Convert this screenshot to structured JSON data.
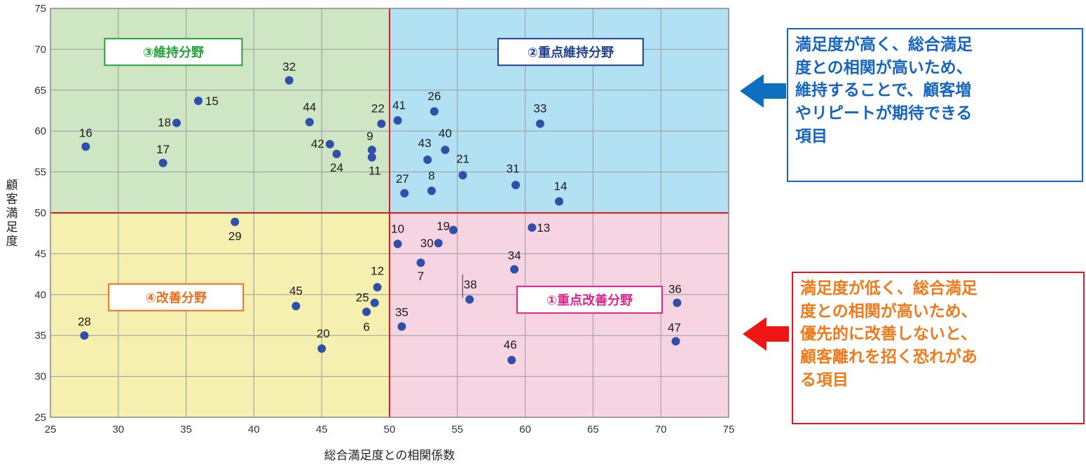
{
  "chart_data": {
    "type": "scatter",
    "xlabel": "総合満足度との相関係数",
    "ylabel": "顧客満足度",
    "xlim": [
      25,
      75
    ],
    "ylim": [
      25,
      75
    ],
    "xticks": [
      "25",
      "30",
      "35",
      "40",
      "45",
      "50",
      "55",
      "60",
      "65",
      "70",
      "75"
    ],
    "yticks": [
      "25",
      "30",
      "35",
      "40",
      "45",
      "50",
      "55",
      "60",
      "65",
      "70",
      "75"
    ],
    "divider": {
      "x": 50,
      "y": 50
    },
    "quadrants": [
      {
        "id": "q3",
        "label": "③維持分野",
        "color": "#22a23a",
        "fill": "#cfe6c4"
      },
      {
        "id": "q2",
        "label": "②重点維持分野",
        "color": "#1f3f8f",
        "fill": "#b2e1f4"
      },
      {
        "id": "q4",
        "label": "④改善分野",
        "color": "#e8701e",
        "fill": "#f5f0b0"
      },
      {
        "id": "q1",
        "label": "①重点改善分野",
        "color": "#e0248a",
        "fill": "#f7d4e2"
      }
    ],
    "points": [
      {
        "label": "16",
        "x": 27.6,
        "y": 58.1
      },
      {
        "label": "17",
        "x": 33.3,
        "y": 56.1
      },
      {
        "label": "18",
        "x": 34.3,
        "y": 61.0
      },
      {
        "label": "15",
        "x": 35.9,
        "y": 63.7
      },
      {
        "label": "32",
        "x": 42.6,
        "y": 66.2
      },
      {
        "label": "44",
        "x": 44.1,
        "y": 61.1
      },
      {
        "label": "42",
        "x": 45.6,
        "y": 58.4
      },
      {
        "label": "24",
        "x": 46.1,
        "y": 57.2
      },
      {
        "label": "9",
        "x": 48.7,
        "y": 57.7
      },
      {
        "label": "11",
        "x": 48.7,
        "y": 56.8
      },
      {
        "label": "22",
        "x": 49.4,
        "y": 60.9
      },
      {
        "label": "41",
        "x": 50.6,
        "y": 61.3
      },
      {
        "label": "26",
        "x": 53.3,
        "y": 62.4
      },
      {
        "label": "40",
        "x": 54.1,
        "y": 57.7
      },
      {
        "label": "43",
        "x": 52.8,
        "y": 56.5
      },
      {
        "label": "27",
        "x": 51.1,
        "y": 52.4
      },
      {
        "label": "8",
        "x": 53.1,
        "y": 52.7
      },
      {
        "label": "21",
        "x": 55.4,
        "y": 54.6
      },
      {
        "label": "31",
        "x": 59.3,
        "y": 53.4
      },
      {
        "label": "33",
        "x": 61.1,
        "y": 60.9
      },
      {
        "label": "14",
        "x": 62.5,
        "y": 51.4
      },
      {
        "label": "29",
        "x": 38.6,
        "y": 48.9
      },
      {
        "label": "28",
        "x": 27.5,
        "y": 35.0
      },
      {
        "label": "45",
        "x": 43.1,
        "y": 38.6
      },
      {
        "label": "20",
        "x": 45.0,
        "y": 33.4
      },
      {
        "label": "12",
        "x": 49.1,
        "y": 40.9
      },
      {
        "label": "25",
        "x": 48.9,
        "y": 39.0
      },
      {
        "label": "6",
        "x": 48.3,
        "y": 37.9
      },
      {
        "label": "10",
        "x": 50.6,
        "y": 46.2
      },
      {
        "label": "19",
        "x": 54.7,
        "y": 47.9
      },
      {
        "label": "30",
        "x": 53.6,
        "y": 46.3
      },
      {
        "label": "7",
        "x": 52.3,
        "y": 43.9
      },
      {
        "label": "13",
        "x": 60.5,
        "y": 48.2
      },
      {
        "label": "34",
        "x": 59.2,
        "y": 43.1
      },
      {
        "label": "38",
        "x": 55.9,
        "y": 39.4
      },
      {
        "label": "35",
        "x": 50.9,
        "y": 36.1
      },
      {
        "label": "46",
        "x": 59.0,
        "y": 32.0
      },
      {
        "label": "36",
        "x": 71.2,
        "y": 39.0
      },
      {
        "label": "47",
        "x": 71.1,
        "y": 34.3
      }
    ],
    "colors": {
      "point": "#2f4fa8",
      "divider": "#e0191f",
      "border": "#888888",
      "grid": "#9a9a9a"
    }
  },
  "notes": {
    "top": {
      "lines": [
        "満足度が高く、総合満足",
        "度との相関が高いため、",
        "維持することで、顧客増",
        "やリピートが期待できる",
        "項目"
      ],
      "text_color": "#1565c0",
      "border_color": "#1565c0",
      "arrow_color": "#0d6fbf"
    },
    "bottom": {
      "lines": [
        "満足度が低く、総合満足",
        "度との相関が高いため、",
        "優先的に改善しないと、",
        "顧客離れを招く恐れがあ",
        "る項目"
      ],
      "text_color": "#f07a1a",
      "border_color": "#e0191f",
      "arrow_color": "#f01515"
    }
  }
}
